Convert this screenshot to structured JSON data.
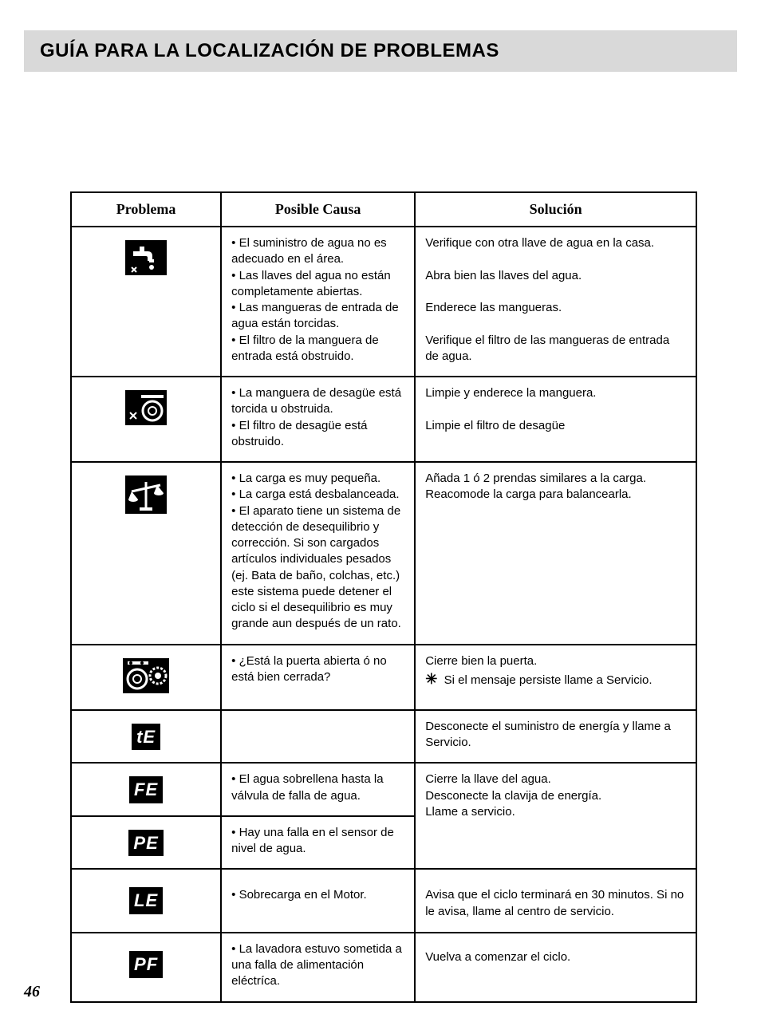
{
  "title": "GUÍA PARA LA LOCALIZACIÓN DE PROBLEMAS",
  "page_number": "46",
  "headers": {
    "problem": "Problema",
    "cause": "Posible Causa",
    "solution": "Solución"
  },
  "colors": {
    "title_bg": "#d9d9d9",
    "border": "#000000",
    "code_bg": "#000000",
    "code_fg": "#ffffff",
    "text": "#000000"
  },
  "fonts": {
    "title_pt": 24,
    "header_pt": 18,
    "body_pt": 15
  },
  "rows": {
    "supply": {
      "icon_alt": "faucet-icon",
      "cause": "• El suministro de agua no es adecuado en el área.\n• Las llaves del agua no están completamente abiertas.\n• Las mangueras de entrada de agua están torcidas.\n• El filtro de la manguera de entrada está obstruido.",
      "solution": "Verifique con otra llave de agua en la casa.\n\nAbra bien las llaves del agua.\n\nEnderece las mangueras.\n\nVerifique el filtro de las mangueras de entrada de agua."
    },
    "drain": {
      "icon_alt": "drum-drain-icon",
      "cause": "• La manguera de desagüe está torcida u obstruida.\n• El filtro de desagüe está obstruido.",
      "solution": "Limpie y enderece la manguera.\n\nLimpie el filtro de desagüe"
    },
    "balance": {
      "icon_alt": "balance-scale-icon",
      "cause": "• La carga es muy pequeña.\n• La carga está desbalanceada.\n• El aparato tiene un sistema de detección de desequilibrio y corrección. Si son cargados artículos individuales pesados (ej. Bata de baño, colchas, etc.) este sistema puede detener el ciclo si el desequilibrio es muy grande aun después de un rato.",
      "solution": "Añada 1 ó 2 prendas similares a la carga.\nReacomode la carga para balancearla."
    },
    "door": {
      "icon_alt": "drum-door-icon",
      "cause": "• ¿Está la puerta abierta ó no está bien cerrada?",
      "solution": "Cierre bien la puerta.",
      "solution_note": "Si el mensaje persiste llame a Servicio."
    },
    "tE": {
      "code": "tE",
      "cause": "",
      "solution": "Desconecte el suministro de energía y llame a Servicio."
    },
    "FE": {
      "code": "FE",
      "cause": "• El agua sobrellena hasta la válvula de falla de agua.",
      "solution": "Cierre la llave del agua.\nDesconecte la clavija de energía.\nLlame a servicio."
    },
    "PE": {
      "code": "PE",
      "cause": "• Hay una falla en el sensor de nivel de agua."
    },
    "LE": {
      "code": "LE",
      "cause": "• Sobrecarga en el Motor.",
      "solution": "Avisa que el ciclo terminará en 30 minutos. Si no le avisa, llame al centro de servicio."
    },
    "PF": {
      "code": "PF",
      "cause": "• La lavadora estuvo sometida a una falla de alimentación eléctríca.",
      "solution": "Vuelva a comenzar el ciclo."
    }
  }
}
